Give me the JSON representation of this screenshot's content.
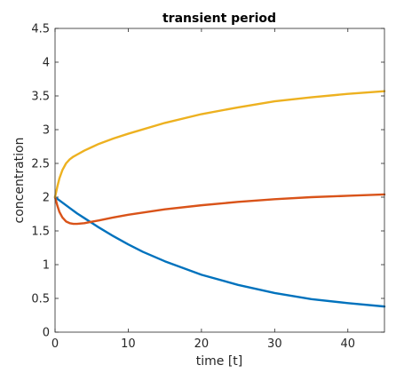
{
  "chart_data": {
    "type": "line",
    "title": "transient period",
    "xlabel": "time [t]",
    "ylabel": "concentration",
    "xlim": [
      0,
      45
    ],
    "ylim": [
      0,
      4.5
    ],
    "xticks": [
      0,
      10,
      20,
      30,
      40
    ],
    "yticks": [
      0,
      0.5,
      1,
      1.5,
      2,
      2.5,
      3,
      3.5,
      4,
      4.5
    ],
    "grid": false,
    "legend": "none",
    "series": [
      {
        "color": "#0072BD",
        "x": [
          0,
          1,
          2,
          3,
          4,
          5,
          6,
          8,
          10,
          12,
          15,
          20,
          25,
          30,
          35,
          40,
          45
        ],
        "y": [
          2.0,
          1.92,
          1.84,
          1.76,
          1.69,
          1.62,
          1.55,
          1.42,
          1.3,
          1.19,
          1.05,
          0.85,
          0.7,
          0.58,
          0.49,
          0.43,
          0.38
        ]
      },
      {
        "color": "#D95319",
        "x": [
          0,
          0.3,
          0.6,
          1,
          1.5,
          2,
          2.5,
          3,
          4,
          5,
          6,
          8,
          10,
          15,
          20,
          25,
          30,
          35,
          40,
          45
        ],
        "y": [
          2.0,
          1.88,
          1.78,
          1.7,
          1.64,
          1.615,
          1.605,
          1.605,
          1.615,
          1.635,
          1.655,
          1.7,
          1.74,
          1.82,
          1.88,
          1.93,
          1.97,
          2.0,
          2.02,
          2.04
        ]
      },
      {
        "color": "#EDB120",
        "x": [
          0,
          0.3,
          0.6,
          1,
          1.5,
          2,
          2.5,
          3,
          4,
          5,
          6,
          8,
          10,
          15,
          20,
          25,
          30,
          35,
          40,
          45
        ],
        "y": [
          2.0,
          2.15,
          2.28,
          2.4,
          2.5,
          2.56,
          2.6,
          2.63,
          2.69,
          2.74,
          2.79,
          2.87,
          2.94,
          3.1,
          3.23,
          3.33,
          3.42,
          3.48,
          3.53,
          3.57
        ]
      }
    ]
  }
}
